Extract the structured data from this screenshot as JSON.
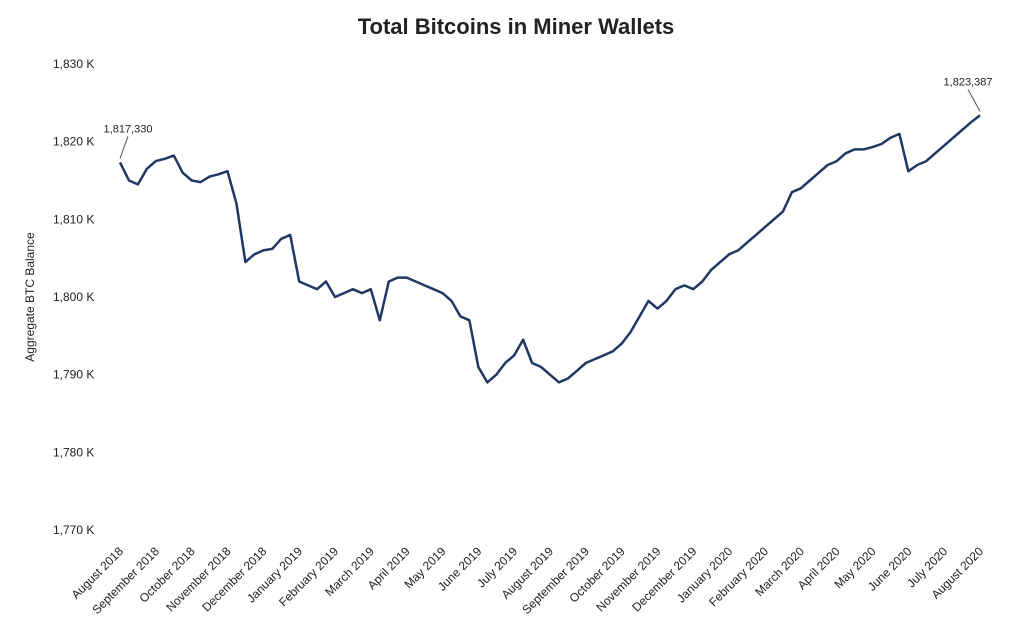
{
  "chart_data": {
    "type": "line",
    "title": "Total Bitcoins in Miner Wallets",
    "y_label": "Aggregate BTC Balance",
    "categories": [
      "August 2018",
      null,
      null,
      null,
      "September 2018",
      null,
      null,
      null,
      "October 2018",
      null,
      null,
      null,
      "November 2018",
      null,
      null,
      null,
      "December 2018",
      null,
      null,
      null,
      "January 2019",
      null,
      null,
      null,
      "February 2019",
      null,
      null,
      null,
      "March 2019",
      null,
      null,
      null,
      "April 2019",
      null,
      null,
      null,
      "May 2019",
      null,
      null,
      null,
      "June 2019",
      null,
      null,
      null,
      "July 2019",
      null,
      null,
      null,
      "August 2019",
      null,
      null,
      null,
      "September 2019",
      null,
      null,
      null,
      "October 2019",
      null,
      null,
      null,
      "November 2019",
      null,
      null,
      null,
      "December 2019",
      null,
      null,
      null,
      "January 2020",
      null,
      null,
      null,
      "February 2020",
      null,
      null,
      null,
      "March 2020",
      null,
      null,
      null,
      "April 2020",
      null,
      null,
      null,
      "May 2020",
      null,
      null,
      null,
      "June 2020",
      null,
      null,
      null,
      "July 2020",
      null,
      null,
      null,
      "August 2020"
    ],
    "series": [
      {
        "name": "Aggregate BTC Balance",
        "color": "#1f3864",
        "values": [
          1817330,
          1815000,
          1814500,
          1816500,
          1817500,
          1817800,
          1818200,
          1816000,
          1815000,
          1814800,
          1815500,
          1815800,
          1816200,
          1812000,
          1804500,
          1805500,
          1806000,
          1806200,
          1807500,
          1808000,
          1802000,
          1801500,
          1801000,
          1802000,
          1800000,
          1800500,
          1801000,
          1800500,
          1801000,
          1797000,
          1802000,
          1802500,
          1802500,
          1802000,
          1801500,
          1801000,
          1800500,
          1799500,
          1797500,
          1797000,
          1791000,
          1789000,
          1790000,
          1791500,
          1792500,
          1794500,
          1791500,
          1791000,
          1790000,
          1789000,
          1789500,
          1790500,
          1791500,
          1792000,
          1792500,
          1793000,
          1794000,
          1795500,
          1797500,
          1799500,
          1798500,
          1799500,
          1801000,
          1801500,
          1801000,
          1802000,
          1803500,
          1804500,
          1805500,
          1806000,
          1807000,
          1808000,
          1809000,
          1810000,
          1811000,
          1813500,
          1814000,
          1815000,
          1816000,
          1817000,
          1817500,
          1818500,
          1819000,
          1819000,
          1819300,
          1819700,
          1820500,
          1821000,
          1816200,
          1817000,
          1817500,
          1818500,
          1819500,
          1820500,
          1821500,
          1822500,
          1823387
        ],
        "value_labels": [
          "1,817,330",
          null,
          null,
          null,
          null,
          null,
          null,
          null,
          null,
          null,
          null,
          null,
          null,
          null,
          null,
          null,
          null,
          null,
          null,
          null,
          null,
          null,
          null,
          null,
          null,
          null,
          null,
          null,
          null,
          null,
          null,
          null,
          null,
          null,
          null,
          null,
          null,
          null,
          null,
          null,
          null,
          null,
          null,
          null,
          null,
          null,
          null,
          null,
          null,
          null,
          null,
          null,
          null,
          null,
          null,
          null,
          null,
          null,
          null,
          null,
          null,
          null,
          null,
          null,
          null,
          null,
          null,
          null,
          null,
          null,
          null,
          null,
          null,
          null,
          null,
          null,
          null,
          null,
          null,
          null,
          null,
          null,
          null,
          null,
          null,
          null,
          null,
          null,
          null,
          null,
          null,
          null,
          null,
          null,
          null,
          null,
          "1,823,387"
        ]
      }
    ],
    "ylim": [
      1770000,
      1830000
    ],
    "yticks": [
      {
        "value": 1770000,
        "label": "1,770 K"
      },
      {
        "value": 1780000,
        "label": "1,780 K"
      },
      {
        "value": 1790000,
        "label": "1,790 K"
      },
      {
        "value": 1800000,
        "label": "1,800 K"
      },
      {
        "value": 1810000,
        "label": "1,810 K"
      },
      {
        "value": 1820000,
        "label": "1,820 K"
      },
      {
        "value": 1830000,
        "label": "1,830 K"
      }
    ],
    "grid": false
  }
}
